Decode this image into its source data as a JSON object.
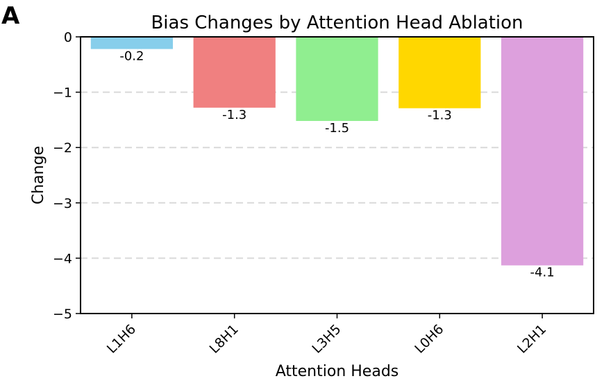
{
  "panel_label": "A",
  "chart_data": {
    "type": "bar",
    "title": "Bias Changes by Attention Head Ablation",
    "xlabel": "Attention Heads",
    "ylabel": "Change",
    "categories": [
      "L1H6",
      "L8H1",
      "L3H5",
      "L0H6",
      "L2H1"
    ],
    "values": [
      -0.22,
      -1.28,
      -1.52,
      -1.29,
      -4.13
    ],
    "value_labels": [
      "-0.2",
      "-1.3",
      "-1.5",
      "-1.3",
      "-4.1"
    ],
    "colors": [
      "#87CEEB",
      "#F08080",
      "#90EE90",
      "#FFD700",
      "#DDA0DD"
    ],
    "ylim": [
      -5,
      0
    ],
    "yticks": [
      0,
      -1,
      -2,
      -3,
      -4,
      -5
    ],
    "ytick_labels": [
      "0",
      "−1",
      "−2",
      "−3",
      "−4",
      "−5"
    ],
    "grid": "y-dashed",
    "legend": "none"
  }
}
